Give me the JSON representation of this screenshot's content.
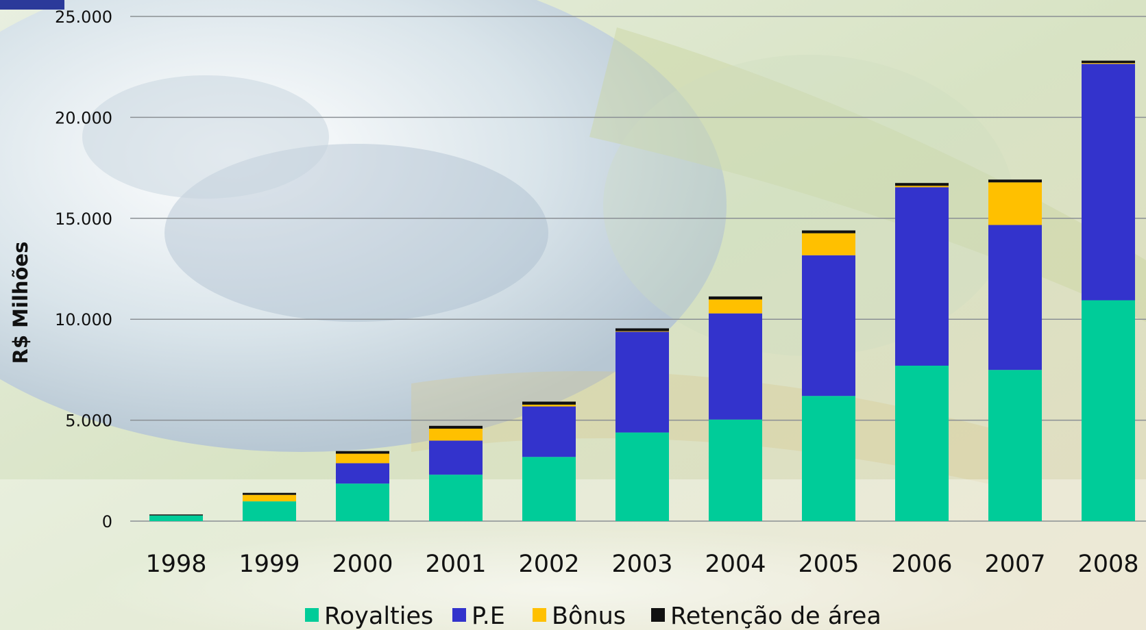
{
  "chart_data": {
    "type": "bar",
    "stacked": true,
    "categories": [
      "1998",
      "1999",
      "2000",
      "2001",
      "2002",
      "2003",
      "2004",
      "2005",
      "2006",
      "2007",
      "2008"
    ],
    "series": [
      {
        "name": "Royalties",
        "color": "#00cc99",
        "values": [
          280,
          980,
          1860,
          2300,
          3180,
          4390,
          5030,
          6200,
          7700,
          7490,
          10940
        ]
      },
      {
        "name": "P.E",
        "color": "#3333cc",
        "values": [
          0,
          0,
          1010,
          1690,
          2500,
          4990,
          5260,
          6970,
          8840,
          7180,
          11710
        ]
      },
      {
        "name": "Bônus",
        "color": "#ffc000",
        "values": [
          0,
          320,
          470,
          590,
          90,
          30,
          690,
          1090,
          70,
          2110,
          40
        ]
      },
      {
        "name": "Retenção de área",
        "color": "#111111",
        "values": [
          50,
          100,
          130,
          140,
          150,
          140,
          150,
          140,
          140,
          140,
          120
        ]
      }
    ],
    "ylabel": "R$ Milhões",
    "xlabel": "",
    "ylim": [
      0,
      25000
    ],
    "yticks": [
      "0",
      "5.000",
      "10.000",
      "15.000",
      "20.000",
      "25.000"
    ],
    "ytick_values": [
      0,
      5000,
      10000,
      15000,
      20000,
      25000
    ],
    "grid": true,
    "legend_position": "bottom"
  }
}
